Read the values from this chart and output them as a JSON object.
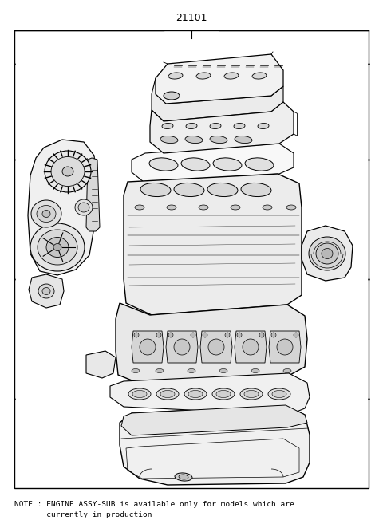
{
  "title_number": "21101",
  "note_line1": "NOTE : ENGINE ASSY-SUB is available only for models which are",
  "note_line2": "       currently in production",
  "bg_color": "#ffffff",
  "line_color": "#000000",
  "title_fontsize": 9,
  "note_fontsize": 6.8,
  "fig_width": 4.8,
  "fig_height": 6.57,
  "dpi": 100
}
